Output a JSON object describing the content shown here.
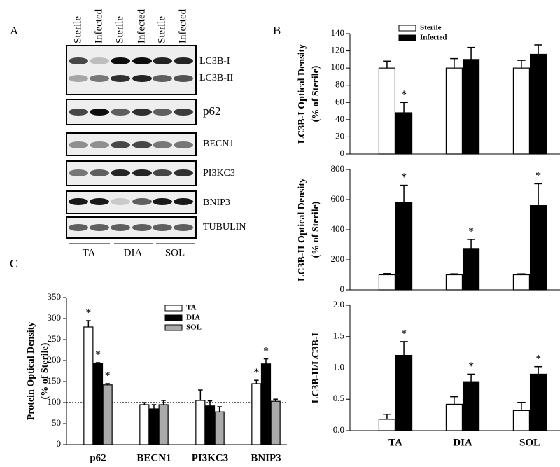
{
  "panel_labels": [
    "A",
    "B",
    "C"
  ],
  "blot": {
    "lane_headers": [
      "Sterile",
      "Infected",
      "Sterile",
      "Infected",
      "Sterile",
      "Infected"
    ],
    "band_labels": [
      "LC3B-I",
      "LC3B-II",
      "p62",
      "BECN1",
      "PI3KC3",
      "BNIP3",
      "TUBULIN"
    ],
    "groups": [
      "TA",
      "DIA",
      "SOL"
    ]
  },
  "chart_data": [
    {
      "type": "bar",
      "y_label": [
        "LC3B-I Optical Density",
        "(% of Sterile)"
      ],
      "ylim": [
        0,
        140
      ],
      "yticks": [
        0,
        20,
        40,
        60,
        80,
        100,
        120,
        140
      ],
      "marker_text": "*",
      "legend": true,
      "series": [
        {
          "name": "Sterile",
          "color": "#ffffff",
          "values": [
            100,
            100,
            100
          ],
          "errors": [
            8,
            11,
            9
          ],
          "significant": [
            false,
            false,
            false
          ]
        },
        {
          "name": "Infected",
          "color": "#000000",
          "values": [
            48,
            110,
            116
          ],
          "errors": [
            12,
            14,
            11
          ],
          "significant": [
            true,
            false,
            false
          ]
        }
      ]
    },
    {
      "type": "bar",
      "y_label": [
        "LC3B-II Optical Density",
        "(% of Sterile)"
      ],
      "ylim": [
        0,
        800
      ],
      "yticks": [
        0,
        200,
        400,
        600,
        800
      ],
      "marker_text": "*",
      "legend": false,
      "series": [
        {
          "color": "#ffffff",
          "values": [
            100,
            100,
            100
          ],
          "errors": [
            8,
            6,
            6
          ],
          "significant": [
            false,
            false,
            false
          ]
        },
        {
          "color": "#000000",
          "values": [
            580,
            275,
            560
          ],
          "errors": [
            115,
            60,
            145
          ],
          "significant": [
            true,
            true,
            true
          ]
        }
      ]
    },
    {
      "type": "bar",
      "y_label": [
        "LC3B-II/LC3B-I"
      ],
      "categories": [
        "TA",
        "DIA",
        "SOL"
      ],
      "ylim": [
        0,
        2
      ],
      "yticks": [
        {
          "value": 0,
          "label": "0.0"
        },
        {
          "value": 0.5,
          "label": "0.5"
        },
        {
          "value": 1,
          "label": "1.0"
        },
        {
          "value": 1.5,
          "label": "1.5"
        },
        {
          "value": 2,
          "label": "2.0"
        }
      ],
      "marker_text": "*",
      "legend": false,
      "series": [
        {
          "color": "#ffffff",
          "values": [
            0.18,
            0.42,
            0.32
          ],
          "errors": [
            0.08,
            0.12,
            0.13
          ],
          "significant": [
            false,
            false,
            false
          ]
        },
        {
          "color": "#000000",
          "values": [
            1.2,
            0.78,
            0.9
          ],
          "errors": [
            0.22,
            0.12,
            0.12
          ],
          "significant": [
            true,
            true,
            true
          ]
        }
      ]
    },
    {
      "type": "bar",
      "y_label": [
        "Protein Optical Density",
        "(% of Sterile)"
      ],
      "categories": [
        "p62",
        "BECN1",
        "PI3KC3",
        "BNIP3"
      ],
      "ylim": [
        0,
        350
      ],
      "yticks": [
        0,
        50,
        100,
        150,
        200,
        250,
        300,
        350
      ],
      "marker_text": "*",
      "legend": true,
      "reference_line": 100,
      "series": [
        {
          "name": "TA",
          "color": "#ffffff",
          "values": [
            280,
            95,
            105,
            145
          ],
          "errors": [
            15,
            5,
            25,
            8
          ],
          "significant": [
            true,
            false,
            false,
            true
          ]
        },
        {
          "name": "DIA",
          "color": "#000000",
          "values": [
            193,
            85,
            92,
            192
          ],
          "errors": [
            2,
            10,
            12,
            12
          ],
          "significant": [
            true,
            false,
            false,
            true
          ]
        },
        {
          "name": "SOL",
          "color": "#aaaaaa",
          "values": [
            142,
            95,
            78,
            103
          ],
          "errors": [
            3,
            10,
            12,
            5
          ],
          "significant": [
            true,
            false,
            false,
            false
          ]
        }
      ]
    }
  ]
}
